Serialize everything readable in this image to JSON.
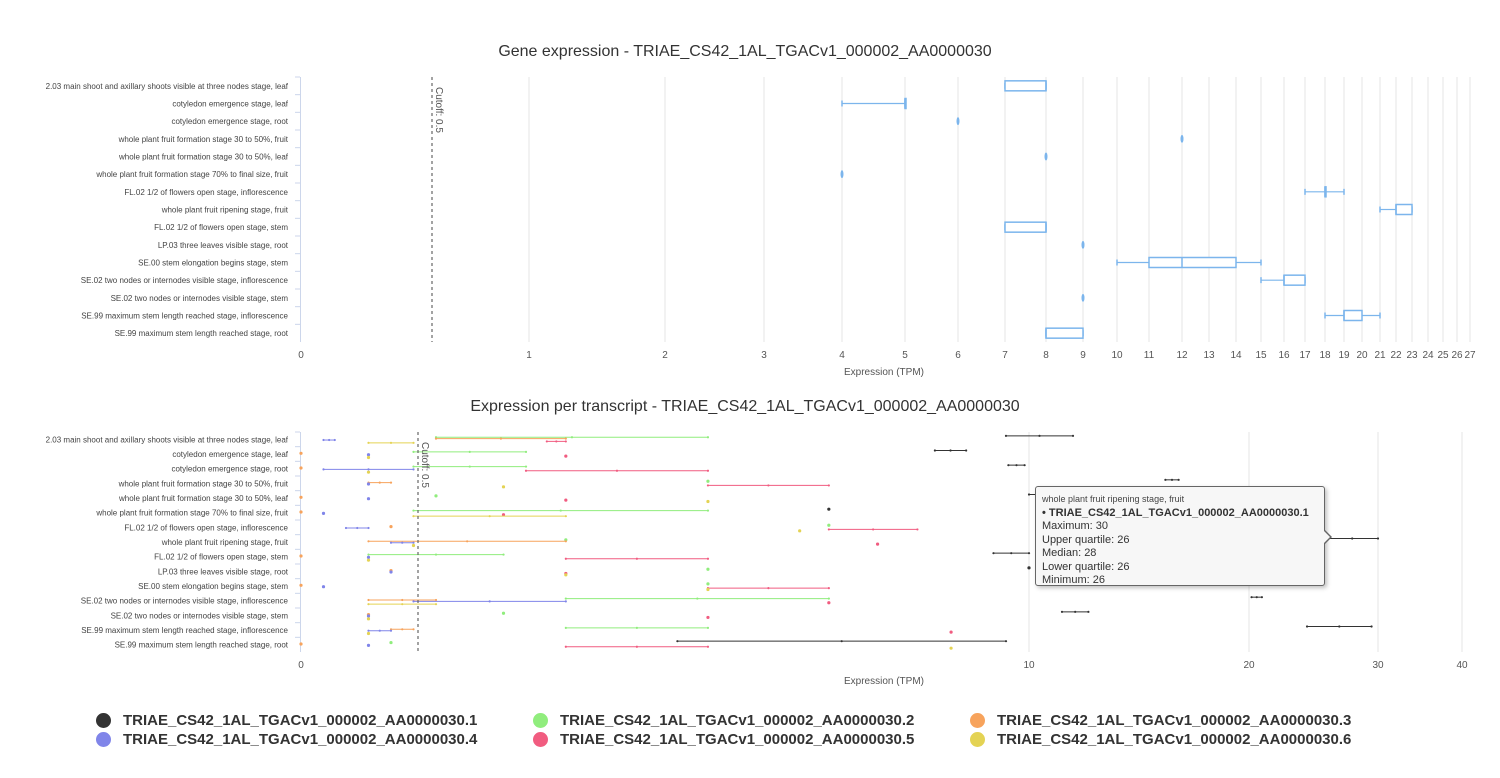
{
  "colors": {
    "box": "#7cb5ec",
    "grid": "#e6e6e6",
    "cutoff": "#666666",
    "series": [
      "#333333",
      "#90ed7d",
      "#f7a35c",
      "#8085e9",
      "#f15c80",
      "#e4d354"
    ]
  },
  "chart_data": [
    {
      "type": "boxplot",
      "title": "Gene expression - TRIAE_CS42_1AL_TGACv1_000002_AA0000030",
      "xlabel": "Expression (TPM)",
      "xscale": "log-like",
      "x_ticks": [
        "0",
        "1",
        "2",
        "3",
        "4",
        "5",
        "6",
        "7",
        "8",
        "9",
        "10",
        "11",
        "12",
        "13",
        "14",
        "15",
        "16",
        "17",
        "18",
        "19",
        "20",
        "21",
        "22",
        "23",
        "24",
        "25",
        "26",
        "27"
      ],
      "cutoff": {
        "label": "Cutoff: 0.5",
        "value": 0.5
      },
      "categories": [
        "2.03 main shoot and axillary shoots visible at three nodes stage, leaf",
        "cotyledon emergence stage, leaf",
        "cotyledon emergence stage, root",
        "whole plant fruit formation stage 30 to 50%, fruit",
        "whole plant fruit formation stage 30 to 50%, leaf",
        "whole plant fruit formation stage 70% to final size, fruit",
        "FL.02 1/2 of flowers open stage, inflorescence",
        "whole plant fruit ripening stage, fruit",
        "FL.02 1/2 of flowers open stage, stem",
        "LP.03 three leaves visible stage, root",
        "SE.00 stem elongation begins stage, stem",
        "SE.02 two nodes or internodes visible stage, inflorescence",
        "SE.02 two nodes or internodes visible stage, stem",
        "SE.99 maximum stem length reached stage, inflorescence",
        "SE.99 maximum stem length reached stage, root"
      ],
      "boxes": [
        {
          "min": 7,
          "q1": 7,
          "median": 8,
          "q3": 8,
          "max": 8
        },
        {
          "min": 4,
          "q1": 5,
          "median": 5,
          "q3": 5,
          "max": 5
        },
        {
          "min": 6,
          "q1": 6,
          "median": 6,
          "q3": 6,
          "max": 6
        },
        {
          "min": 12,
          "q1": 12,
          "median": 12,
          "q3": 12,
          "max": 12
        },
        {
          "min": 8,
          "q1": 8,
          "median": 8,
          "q3": 8,
          "max": 8
        },
        {
          "min": 4,
          "q1": 4,
          "median": 4,
          "q3": 4,
          "max": 4
        },
        {
          "min": 17,
          "q1": 18,
          "median": 18,
          "q3": 18,
          "max": 19
        },
        {
          "min": 21,
          "q1": 22,
          "median": 22,
          "q3": 23,
          "max": 23
        },
        {
          "min": 7,
          "q1": 7,
          "median": 8,
          "q3": 8,
          "max": 8
        },
        {
          "min": 9,
          "q1": 9,
          "median": 9,
          "q3": 9,
          "max": 9
        },
        {
          "min": 10,
          "q1": 11,
          "median": 12,
          "q3": 14,
          "max": 15
        },
        {
          "min": 15,
          "q1": 16,
          "median": 16,
          "q3": 17,
          "max": 17
        },
        {
          "min": 9,
          "q1": 9,
          "median": 9,
          "q3": 9,
          "max": 9
        },
        {
          "min": 18,
          "q1": 19,
          "median": 19,
          "q3": 20,
          "max": 21
        },
        {
          "min": 8,
          "q1": 8,
          "median": 8,
          "q3": 9,
          "max": 9
        }
      ]
    },
    {
      "type": "boxplot",
      "title": "Expression per transcript - TRIAE_CS42_1AL_TGACv1_000002_AA0000030",
      "xlabel": "Expression (TPM)",
      "x_ticks": [
        "0",
        "10",
        "20",
        "30",
        "40"
      ],
      "cutoff": {
        "label": "Cutoff: 0.5",
        "value": 0.5
      },
      "series_names": [
        "TRIAE_CS42_1AL_TGACv1_000002_AA0000030.1",
        "TRIAE_CS42_1AL_TGACv1_000002_AA0000030.2",
        "TRIAE_CS42_1AL_TGACv1_000002_AA0000030.3",
        "TRIAE_CS42_1AL_TGACv1_000002_AA0000030.4",
        "TRIAE_CS42_1AL_TGACv1_000002_AA0000030.5",
        "TRIAE_CS42_1AL_TGACv1_000002_AA0000030.6"
      ],
      "ranges": [
        [
          [
            9,
            12
          ],
          [
            0.6,
            2.3
          ],
          [
            0.6,
            1.2
          ],
          [
            0.1,
            0.15
          ],
          [
            1.1,
            1.2
          ],
          [
            0.3,
            0.5
          ]
        ],
        [
          [
            6.5,
            7.5
          ],
          [
            0.5,
            1
          ],
          [
            0,
            0
          ],
          [
            0.3,
            0.3
          ],
          [
            1.2,
            1.2
          ],
          [
            0.3,
            0.3
          ]
        ],
        [
          [
            9.1,
            9.8
          ],
          [
            0.5,
            1
          ],
          [
            0,
            0
          ],
          [
            0.1,
            0.5
          ],
          [
            1.0,
            2.3
          ],
          [
            0.3,
            0.3
          ]
        ],
        [
          [
            16.2,
            16.8
          ],
          [
            2.3,
            2.3
          ],
          [
            0.3,
            0.4
          ],
          [
            0.3,
            0.3
          ],
          [
            2.3,
            4
          ],
          [
            0.9,
            0.9
          ]
        ],
        [
          [
            10,
            11
          ],
          [
            0.6,
            0.6
          ],
          [
            0,
            0
          ],
          [
            0.3,
            0.3
          ],
          [
            1.2,
            1.2
          ],
          [
            2.3,
            2.3
          ]
        ],
        [
          [
            4,
            4
          ],
          [
            0.5,
            2.3
          ],
          [
            0,
            0
          ],
          [
            0.1,
            0.1
          ],
          [
            0.9,
            0.9
          ],
          [
            0.5,
            1.2
          ]
        ],
        [
          [
            10.5,
            10.5
          ],
          [
            4,
            4
          ],
          [
            0.4,
            0.4
          ],
          [
            0.2,
            0.3
          ],
          [
            4,
            6
          ],
          [
            3.5,
            3.5
          ]
        ],
        [
          [
            26,
            30
          ],
          [
            1.2,
            1.2
          ],
          [
            0.3,
            1.2
          ],
          [
            0.4,
            0.5
          ],
          [
            5,
            5
          ],
          [
            0.5,
            0.5
          ]
        ],
        [
          [
            8.5,
            10
          ],
          [
            0.3,
            0.9
          ],
          [
            0,
            0
          ],
          [
            0.3,
            0.3
          ],
          [
            1.2,
            2.3
          ],
          [
            0.3,
            0.3
          ]
        ],
        [
          [
            10,
            10
          ],
          [
            2.3,
            2.3
          ],
          [
            0.4,
            0.4
          ],
          [
            0.4,
            0.4
          ],
          [
            1.2,
            1.2
          ],
          [
            1.2,
            1.2
          ]
        ],
        [
          [
            13,
            13
          ],
          [
            2.3,
            2.3
          ],
          [
            0,
            0
          ],
          [
            0.1,
            0.1
          ],
          [
            2.3,
            4
          ],
          [
            2.3,
            2.3
          ]
        ],
        [
          [
            20.2,
            21
          ],
          [
            1.2,
            4
          ],
          [
            0.3,
            0.6
          ],
          [
            0.5,
            1.2
          ],
          [
            4,
            4
          ],
          [
            0.3,
            0.6
          ]
        ],
        [
          [
            11.5,
            12.7
          ],
          [
            0.9,
            0.9
          ],
          [
            0.3,
            0.3
          ],
          [
            0.3,
            0.3
          ],
          [
            2.3,
            2.3
          ],
          [
            0.3,
            0.3
          ]
        ],
        [
          [
            24.5,
            29.5
          ],
          [
            1.2,
            2.3
          ],
          [
            0.4,
            0.5
          ],
          [
            0.3,
            0.4
          ],
          [
            7,
            7
          ],
          [
            0.3,
            0.3
          ]
        ],
        [
          [
            2,
            9
          ],
          [
            0.4,
            0.4
          ],
          [
            0,
            0
          ],
          [
            0.3,
            0.3
          ],
          [
            1.2,
            2.3
          ],
          [
            7,
            7
          ]
        ]
      ]
    }
  ],
  "tooltip": {
    "category": "whole plant fruit ripening stage, fruit",
    "series": "• TRIAE_CS42_1AL_TGACv1_000002_AA0000030.1",
    "maximum": "Maximum: 30",
    "upper_quartile": "Upper quartile: 26",
    "median": "Median: 28",
    "lower_quartile": "Lower quartile: 26",
    "minimum": "Minimum: 26"
  },
  "legend": [
    {
      "label": "TRIAE_CS42_1AL_TGACv1_000002_AA0000030.1"
    },
    {
      "label": "TRIAE_CS42_1AL_TGACv1_000002_AA0000030.2"
    },
    {
      "label": "TRIAE_CS42_1AL_TGACv1_000002_AA0000030.3"
    },
    {
      "label": "TRIAE_CS42_1AL_TGACv1_000002_AA0000030.4"
    },
    {
      "label": "TRIAE_CS42_1AL_TGACv1_000002_AA0000030.5"
    },
    {
      "label": "TRIAE_CS42_1AL_TGACv1_000002_AA0000030.6"
    }
  ]
}
